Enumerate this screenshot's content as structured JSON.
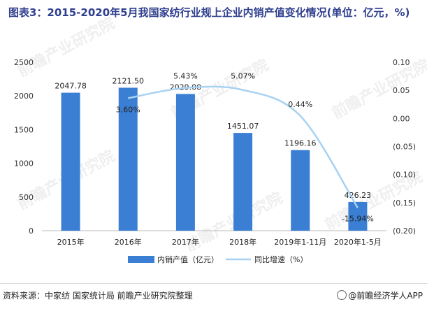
{
  "title": "图表3：2015-2020年5月我国家纺行业规上企业内销产值变化情况(单位：亿元，%)",
  "source": "资料来源：中家纺 国家统计局 前瞻产业研究院整理",
  "brand": "@前瞻经济学人APP",
  "watermark": "前瞻产业研究院",
  "colors": {
    "bar": "#3b7fd4",
    "line": "#a8d2f2",
    "title": "#2f3f8f"
  },
  "chart_data": {
    "type": "bar",
    "categories": [
      "2015年",
      "2016年",
      "2017年",
      "2018年",
      "2019年1-11月",
      "2020年1-5月"
    ],
    "series": [
      {
        "name": "内销产值（亿元）",
        "type": "bar",
        "axis": "left",
        "values": [
          2047.78,
          2121.5,
          2029.0,
          1451.07,
          1196.16,
          426.23
        ],
        "labels": [
          "2047.78",
          "2121.50",
          "2029.00",
          "1451.07",
          "1196.16",
          "426.23"
        ]
      },
      {
        "name": "同比增速（%）",
        "type": "line",
        "axis": "right",
        "values": [
          null,
          0.036,
          0.0543,
          0.0507,
          0.0044,
          -0.1594
        ],
        "labels": [
          null,
          "3.60%",
          "5.43%",
          "5.07%",
          "0.44%",
          "-15.94%"
        ]
      }
    ],
    "y_left": {
      "min": 0,
      "max": 2500,
      "ticks": [
        "0",
        "500",
        "1000",
        "1500",
        "2000",
        "2500"
      ]
    },
    "y_right": {
      "min": -0.2,
      "max": 0.1,
      "ticks": [
        "0.10",
        "0.05",
        "0.00",
        "(0.05)",
        "(0.10)",
        "(0.15)",
        "(0.20)"
      ]
    },
    "grid": false,
    "legend": "bottom"
  }
}
